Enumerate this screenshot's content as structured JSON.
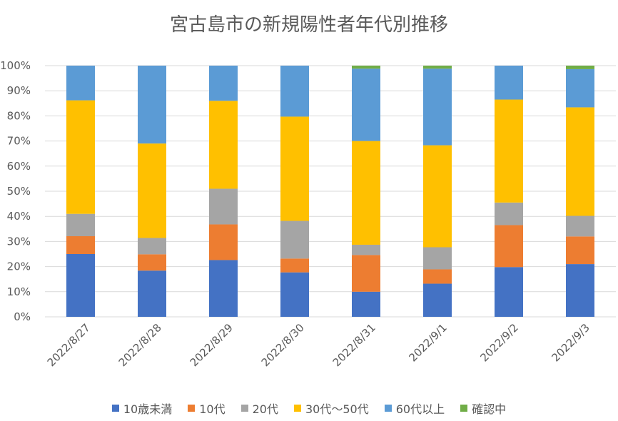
{
  "chart_data": {
    "type": "bar",
    "stacked": true,
    "title": "宮古島市の新規陽性者年代別推移",
    "categories": [
      "2022/8/27",
      "2022/8/28",
      "2022/8/29",
      "2022/8/30",
      "2022/8/31",
      "2022/9/1",
      "2022/9/2",
      "2022/9/3"
    ],
    "ylim": [
      0,
      100
    ],
    "y_ticks": [
      "0%",
      "10%",
      "20%",
      "30%",
      "40%",
      "50%",
      "60%",
      "70%",
      "80%",
      "90%",
      "100%"
    ],
    "grid": true,
    "legend_position": "bottom",
    "series": [
      {
        "name": "10歳未満",
        "color": "#4472C4",
        "values": [
          25.0,
          18.4,
          22.6,
          17.7,
          10.0,
          13.2,
          19.8,
          21.0
        ]
      },
      {
        "name": "10代",
        "color": "#ED7D31",
        "values": [
          7.1,
          6.5,
          14.2,
          5.5,
          14.6,
          5.7,
          16.7,
          11.0
        ]
      },
      {
        "name": "20代",
        "color": "#A5A5A5",
        "values": [
          8.9,
          6.5,
          14.2,
          15.0,
          4.1,
          8.8,
          9.0,
          8.2
        ]
      },
      {
        "name": "30代～50代",
        "color": "#FFC000",
        "values": [
          45.2,
          37.6,
          35.0,
          41.5,
          41.3,
          40.6,
          41.0,
          43.2
        ]
      },
      {
        "name": "60代以上",
        "color": "#5B9BD5",
        "values": [
          13.8,
          31.0,
          14.0,
          20.3,
          28.8,
          30.5,
          13.5,
          15.2
        ]
      },
      {
        "name": "確認中",
        "color": "#70AD47",
        "values": [
          0,
          0,
          0,
          0,
          1.2,
          1.2,
          0,
          1.4
        ]
      }
    ]
  }
}
